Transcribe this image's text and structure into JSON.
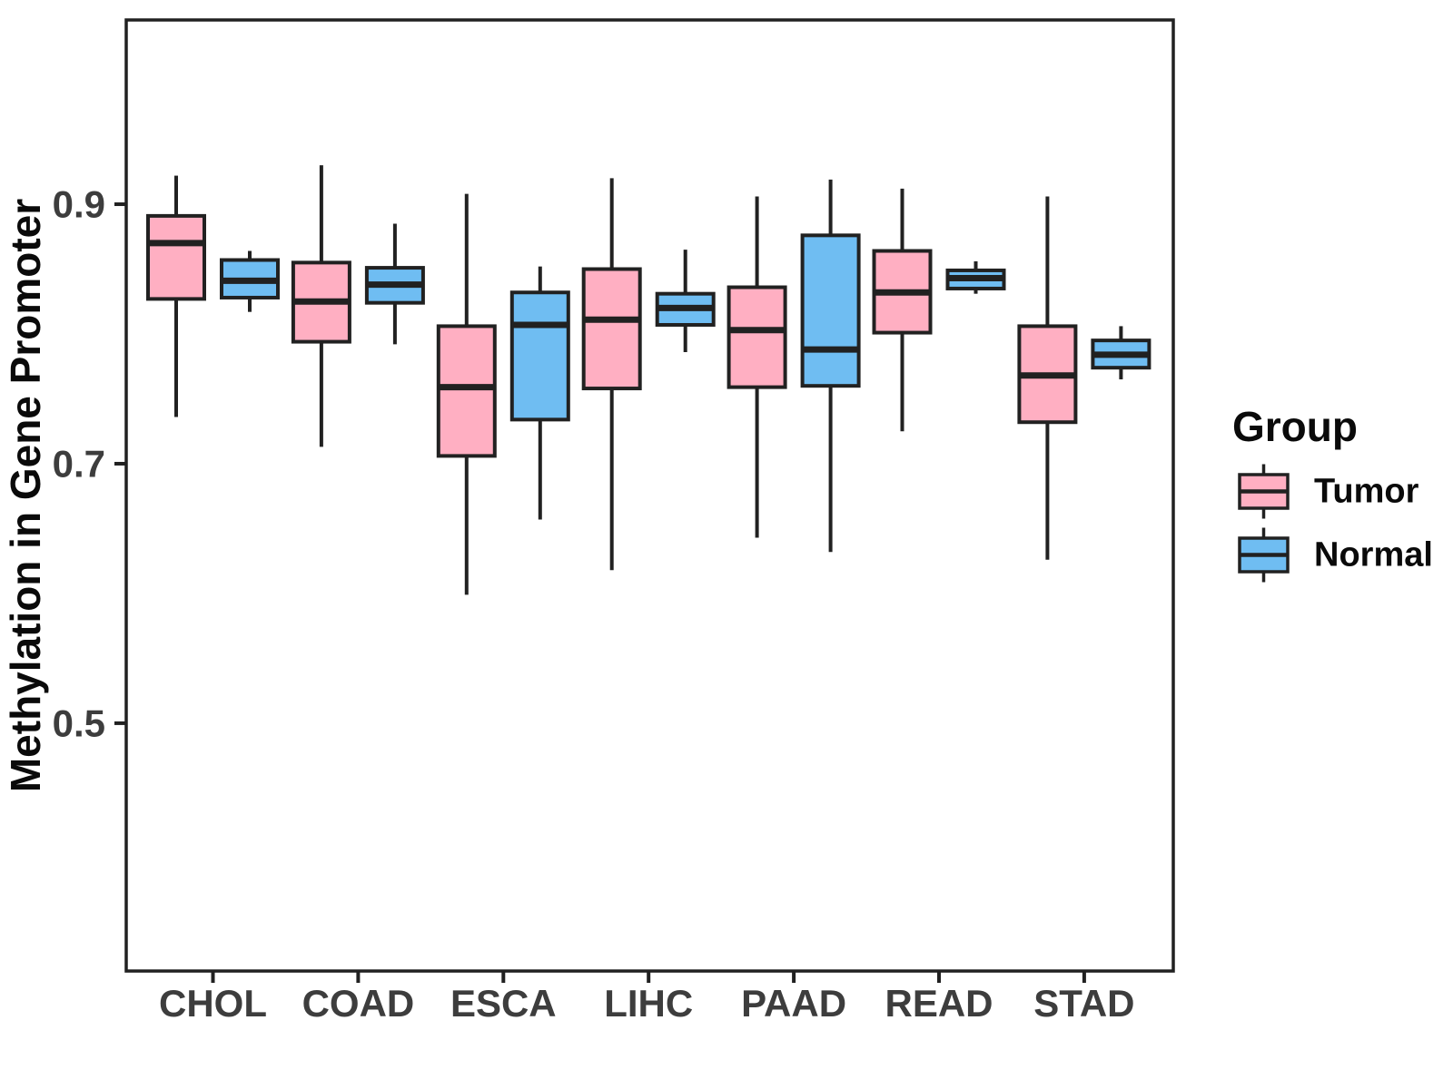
{
  "figure": {
    "background_color": "#ffffff",
    "box_outline_color": "#212121",
    "axis_text_color": "#3d3d3d"
  },
  "chart_data": {
    "type": "boxplot",
    "title": "",
    "xlabel": "",
    "ylabel": "Methylation in Gene Promoter",
    "categories": [
      "CHOL",
      "COAD",
      "ESCA",
      "LIHC",
      "PAAD",
      "READ",
      "STAD"
    ],
    "yticks": [
      0.5,
      0.7,
      0.9
    ],
    "ytick_labels": [
      "0.5",
      "0.7",
      "0.9"
    ],
    "ylim": [
      0.309,
      1.042
    ],
    "grid": "off",
    "panel_border": "on",
    "legend": {
      "title": "Group",
      "position": "right",
      "entries": [
        {
          "label": "Tumor",
          "color": "#FFAFC2"
        },
        {
          "label": "Normal",
          "color": "#6FBDF2"
        }
      ]
    },
    "series": [
      {
        "name": "Tumor",
        "color": "#FFAFC2",
        "boxes": [
          {
            "category": "CHOL",
            "whisker_low": 0.736,
            "q1": 0.827,
            "median": 0.87,
            "q3": 0.891,
            "whisker_high": 0.922
          },
          {
            "category": "COAD",
            "whisker_low": 0.713,
            "q1": 0.794,
            "median": 0.825,
            "q3": 0.855,
            "whisker_high": 0.93
          },
          {
            "category": "ESCA",
            "whisker_low": 0.599,
            "q1": 0.706,
            "median": 0.759,
            "q3": 0.806,
            "whisker_high": 0.908
          },
          {
            "category": "LIHC",
            "whisker_low": 0.618,
            "q1": 0.758,
            "median": 0.811,
            "q3": 0.85,
            "whisker_high": 0.92
          },
          {
            "category": "PAAD",
            "whisker_low": 0.643,
            "q1": 0.759,
            "median": 0.803,
            "q3": 0.836,
            "whisker_high": 0.906
          },
          {
            "category": "READ",
            "whisker_low": 0.725,
            "q1": 0.801,
            "median": 0.832,
            "q3": 0.864,
            "whisker_high": 0.912
          },
          {
            "category": "STAD",
            "whisker_low": 0.626,
            "q1": 0.732,
            "median": 0.768,
            "q3": 0.806,
            "whisker_high": 0.906
          }
        ]
      },
      {
        "name": "Normal",
        "color": "#6FBDF2",
        "boxes": [
          {
            "category": "CHOL",
            "whisker_low": 0.817,
            "q1": 0.828,
            "median": 0.841,
            "q3": 0.857,
            "whisker_high": 0.864
          },
          {
            "category": "COAD",
            "whisker_low": 0.792,
            "q1": 0.824,
            "median": 0.838,
            "q3": 0.851,
            "whisker_high": 0.885
          },
          {
            "category": "ESCA",
            "whisker_low": 0.657,
            "q1": 0.734,
            "median": 0.807,
            "q3": 0.832,
            "whisker_high": 0.852
          },
          {
            "category": "LIHC",
            "whisker_low": 0.786,
            "q1": 0.807,
            "median": 0.82,
            "q3": 0.831,
            "whisker_high": 0.865
          },
          {
            "category": "PAAD",
            "whisker_low": 0.632,
            "q1": 0.76,
            "median": 0.788,
            "q3": 0.876,
            "whisker_high": 0.919
          },
          {
            "category": "READ",
            "whisker_low": 0.831,
            "q1": 0.835,
            "median": 0.843,
            "q3": 0.849,
            "whisker_high": 0.856
          },
          {
            "category": "STAD",
            "whisker_low": 0.765,
            "q1": 0.774,
            "median": 0.784,
            "q3": 0.795,
            "whisker_high": 0.806
          }
        ]
      }
    ]
  }
}
